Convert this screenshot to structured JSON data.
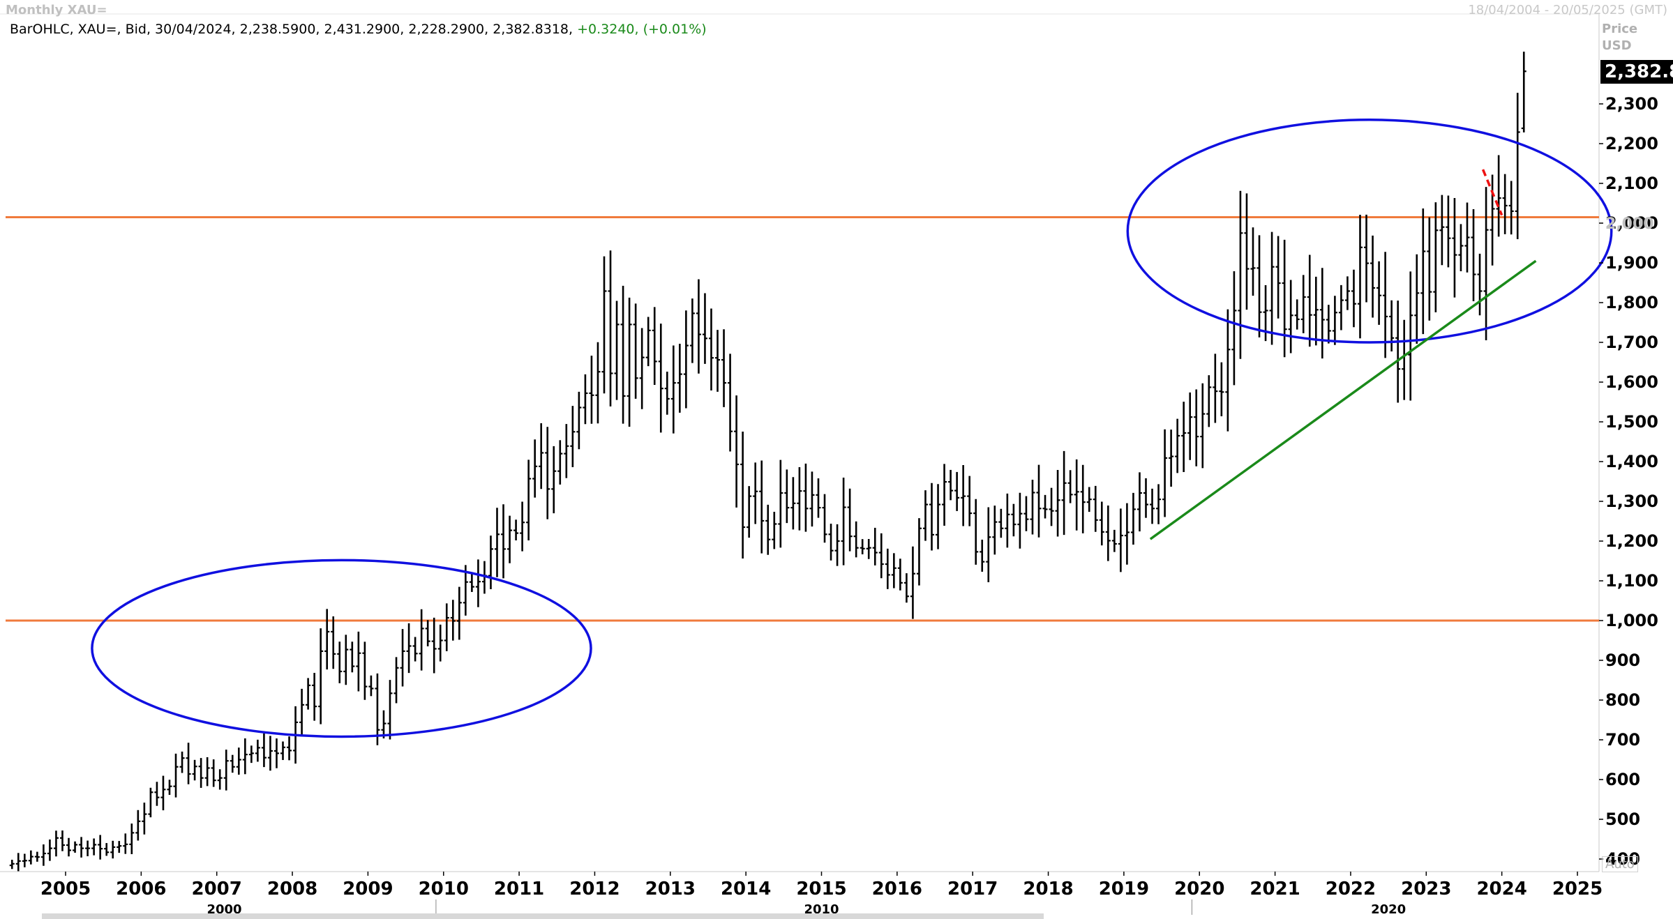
{
  "header": {
    "title": "Monthly XAU=",
    "date_range": "18/04/2004 - 20/05/2025 (GMT)",
    "ohlc_label": "BarOHLC, XAU=, Bid, 30/04/2024, 2,238.5900, 2,431.2900, 2,228.2900, 2,382.8318,",
    "change": "+0.3240, (+0.01%)"
  },
  "axis": {
    "price_unit_line1": "Price",
    "price_unit_line2": "USD",
    "last_price": "2,382.8",
    "auto_label": "Auto"
  },
  "colors": {
    "bars": "#000000",
    "horizontal_lines": "#f07a3c",
    "ellipses": "#1010e0",
    "trendline": "#1a8a1a",
    "downtrend": "#ee1111",
    "change_text": "#1a8a1a"
  },
  "chart_data": {
    "type": "bar",
    "subtype": "ohlc",
    "title": "Monthly XAU=",
    "x_range": [
      "2004-04",
      "2025-05"
    ],
    "ylim": [
      330,
      2450
    ],
    "y_ticks": [
      400,
      500,
      600,
      700,
      800,
      900,
      1000,
      1100,
      1200,
      1300,
      1400,
      1500,
      1600,
      1700,
      1800,
      1900,
      2000,
      2100,
      2200,
      2300
    ],
    "y_tick_labels": [
      "400",
      "500",
      "600",
      "700",
      "800",
      "900",
      "1,000",
      "1,100",
      "1,200",
      "1,300",
      "1,400",
      "1,500",
      "1,600",
      "1,700",
      "1,800",
      "1,900",
      "2,000",
      "2,100",
      "2,200",
      "2,300"
    ],
    "x_ticks": [
      2005,
      2006,
      2007,
      2008,
      2009,
      2010,
      2011,
      2012,
      2013,
      2014,
      2015,
      2016,
      2017,
      2018,
      2019,
      2020,
      2021,
      2022,
      2023,
      2024,
      2025
    ],
    "x_tick_labels": [
      "2005",
      "2006",
      "2007",
      "2008",
      "2009",
      "2010",
      "2011",
      "2012",
      "2013",
      "2014",
      "2015",
      "2016",
      "2017",
      "2018",
      "2019",
      "2020",
      "2021",
      "2022",
      "2023",
      "2024",
      "2025"
    ],
    "decade_labels": [
      {
        "label": "2000",
        "x": 2007.1
      },
      {
        "label": "2010",
        "x": 2015.0
      },
      {
        "label": "2020",
        "x": 2022.5
      }
    ],
    "decade_separators": [
      2009.9,
      2019.9
    ],
    "horizontal_lines": [
      1000,
      2015
    ],
    "trendline": {
      "from": [
        2019.35,
        1205
      ],
      "to": [
        2024.45,
        1905
      ]
    },
    "downtrend_line": {
      "from": [
        2023.75,
        2135
      ],
      "to": [
        2024.0,
        2020
      ]
    },
    "ellipses": [
      {
        "center": [
          2008.65,
          930
        ],
        "radius_years": 3.3,
        "radius_price": 222
      },
      {
        "center": [
          2022.25,
          1980
        ],
        "radius_years": 3.2,
        "radius_price": 280
      }
    ],
    "last_bar": {
      "date": "2024-04",
      "open": 2238.59,
      "high": 2431.29,
      "low": 2228.29,
      "close": 2382.8318
    },
    "series": [
      {
        "start": "2004-04",
        "closes": [
          388,
          395,
          396,
          406,
          405,
          414,
          427,
          453,
          435,
          422,
          436,
          427,
          427,
          436,
          426,
          417,
          430,
          433,
          437,
          466,
          495,
          513,
          568,
          555,
          575,
          583,
          632,
          654,
          614,
          633,
          604,
          629,
          598,
          604,
          647,
          632,
          650,
          663,
          666,
          680,
          655,
          672,
          666,
          681,
          673,
          744,
          788,
          837,
          784,
          923,
          972,
          916,
          872,
          927,
          885,
          918,
          834,
          829,
          725,
          741,
          817,
          881,
          923,
          936,
          917,
          980,
          948,
          929,
          950,
          1007,
          999,
          1045,
          1097,
          1085,
          1098,
          1113,
          1180,
          1217,
          1180,
          1227,
          1220,
          1247,
          1357,
          1388,
          1422,
          1331,
          1376,
          1420,
          1439,
          1475,
          1536,
          1572,
          1567,
          1626,
          1829,
          1622,
          1745,
          1565,
          1745,
          1610,
          1662,
          1730,
          1652,
          1584,
          1558,
          1598,
          1620,
          1692,
          1773,
          1720,
          1710,
          1661,
          1656,
          1598,
          1476,
          1393,
          1235,
          1313,
          1325,
          1251,
          1204,
          1243,
          1321,
          1284,
          1295,
          1326,
          1282,
          1316,
          1284,
          1217,
          1176,
          1200,
          1285,
          1212,
          1183,
          1181,
          1183,
          1171,
          1142,
          1115,
          1132,
          1095,
          1061,
          1118,
          1232,
          1292,
          1216,
          1292,
          1349,
          1327,
          1309,
          1313,
          1270,
          1173,
          1148,
          1210,
          1248,
          1232,
          1267,
          1242,
          1269,
          1255,
          1322,
          1282,
          1280,
          1276,
          1303,
          1346,
          1317,
          1324,
          1298,
          1305,
          1253,
          1223,
          1201,
          1193,
          1214,
          1222,
          1280,
          1321,
          1292,
          1282,
          1305,
          1409,
          1413,
          1465,
          1472,
          1512,
          1463,
          1520,
          1587,
          1577,
          1575,
          1682,
          1780,
          1975,
          1885,
          1887,
          1776,
          1780,
          1890,
          1849,
          1733,
          1768,
          1758,
          1814,
          1769,
          1782,
          1757,
          1729,
          1775,
          1806,
          1829,
          1797,
          1939,
          1899,
          1837,
          1818,
          1765,
          1711,
          1633,
          1669,
          1768,
          1824,
          1929,
          1827,
          1982,
          1990,
          1962,
          1920,
          1943,
          1964,
          1871,
          1829,
          1983,
          2036,
          2063,
          2044,
          2030,
          2229,
          2382
        ]
      }
    ]
  }
}
